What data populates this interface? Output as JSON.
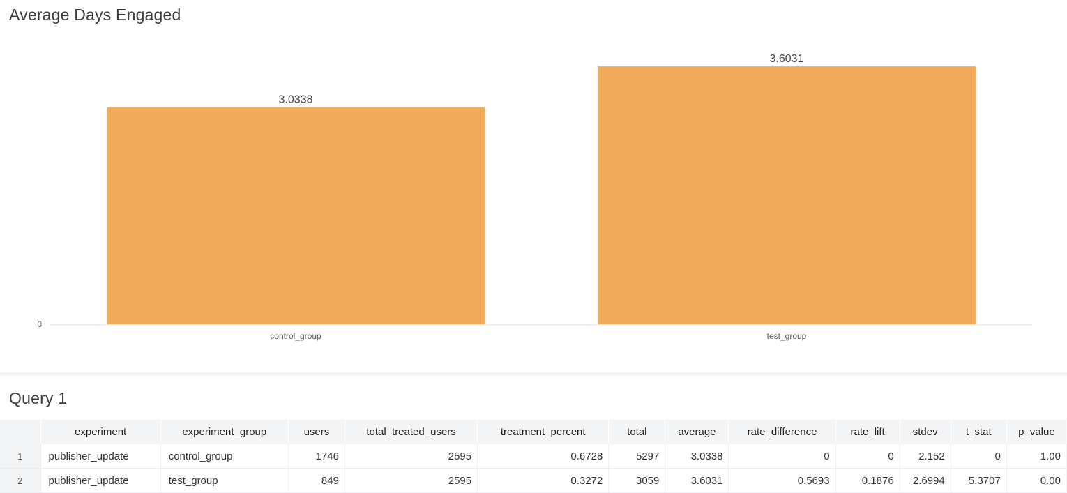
{
  "chart_panel": {
    "title": "Average Days Engaged"
  },
  "chart_data": {
    "type": "bar",
    "title": "Average Days Engaged",
    "categories": [
      "control_group",
      "test_group"
    ],
    "values": [
      3.0338,
      3.6031
    ],
    "data_labels": [
      "3.0338",
      "3.6031"
    ],
    "y_ticks": [
      "0"
    ],
    "ylim": [
      0,
      4.14
    ],
    "grid": false,
    "legend": "none",
    "bar_color": "#f2aa5c"
  },
  "query_panel": {
    "title": "Query 1",
    "columns": [
      "",
      "experiment",
      "experiment_group",
      "users",
      "total_treated_users",
      "treatment_percent",
      "total",
      "average",
      "rate_difference",
      "rate_lift",
      "stdev",
      "t_stat",
      "p_value"
    ],
    "rows": [
      [
        "1",
        "publisher_update",
        "control_group",
        "1746",
        "2595",
        "0.6728",
        "5297",
        "3.0338",
        "0",
        "0",
        "2.152",
        "0",
        "1.00"
      ],
      [
        "2",
        "publisher_update",
        "test_group",
        "849",
        "2595",
        "0.3272",
        "3059",
        "3.6031",
        "0.5693",
        "0.1876",
        "2.6994",
        "5.3707",
        "0.00"
      ]
    ]
  }
}
